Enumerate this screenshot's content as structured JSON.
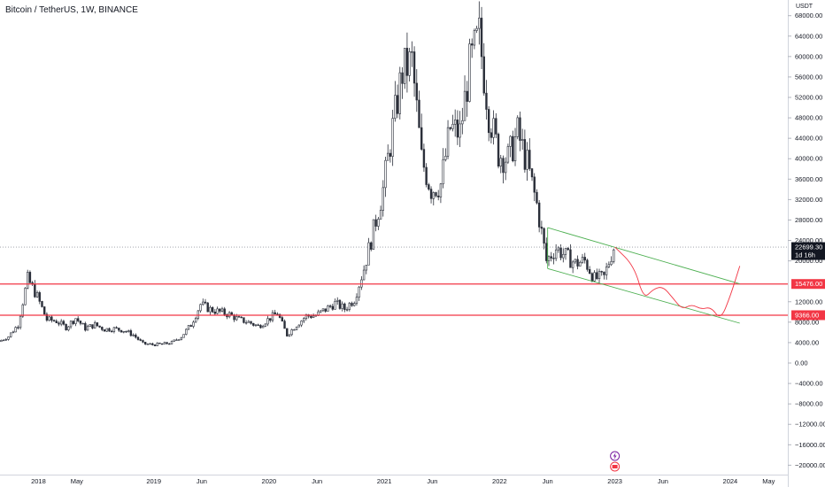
{
  "header": {
    "title": "Bitcoin / TetherUS, 1W, BINANCE"
  },
  "price_axis": {
    "unit": "USDT"
  },
  "colors": {
    "candle": "#2a2e39",
    "support_line": "#f23645",
    "channel": "#4caf50",
    "projection": "#f23645",
    "current_badge": "#131722",
    "axis_text": "#131722"
  },
  "badges": {
    "current_price": "22699.30",
    "countdown": "1d 16h",
    "support_high": "15476.00",
    "support_low": "9366.00"
  },
  "chart_data": {
    "type": "candlestick",
    "title": "Bitcoin / TetherUS, 1W, BINANCE",
    "y_unit": "USDT",
    "ylim": [
      -22000,
      70000
    ],
    "y_ticks": [
      68000,
      64000,
      60000,
      56000,
      52000,
      48000,
      44000,
      40000,
      36000,
      32000,
      28000,
      24000,
      20000,
      16000,
      12000,
      8000,
      4000,
      0,
      -4000,
      -8000,
      -12000,
      -16000,
      -20000
    ],
    "y_tick_labels": [
      "68000.00",
      "64000.00",
      "60000.00",
      "56000.00",
      "52000.00",
      "48000.00",
      "44000.00",
      "40000.00",
      "36000.00",
      "32000.00",
      "28000.00",
      "24000.00",
      "20000.00",
      "",
      "12000.00",
      "8000.00",
      "4000.00",
      "0.00",
      "−4000.00",
      "−8000.00",
      "−12000.00",
      "−16000.00",
      "−20000.00"
    ],
    "x_ticks": [
      {
        "label": "2018",
        "date": "2018-01"
      },
      {
        "label": "May",
        "date": "2018-05"
      },
      {
        "label": "2019",
        "date": "2019-01"
      },
      {
        "label": "Jun",
        "date": "2019-06"
      },
      {
        "label": "2020",
        "date": "2020-01"
      },
      {
        "label": "Jun",
        "date": "2020-06"
      },
      {
        "label": "2021",
        "date": "2021-01"
      },
      {
        "label": "Jun",
        "date": "2021-06"
      },
      {
        "label": "2022",
        "date": "2022-01"
      },
      {
        "label": "Jun",
        "date": "2022-06"
      },
      {
        "label": "2023",
        "date": "2023-01"
      },
      {
        "label": "Jun",
        "date": "2023-06"
      },
      {
        "label": "2024",
        "date": "2024-01"
      },
      {
        "label": "May",
        "date": "2024-05"
      }
    ],
    "xlim": [
      "2017-09",
      "2024-07"
    ],
    "series": [
      {
        "points": [
          [
            "2017-09",
            4200
          ],
          [
            "2017-10",
            5200
          ],
          [
            "2017-11",
            7500
          ],
          [
            "2017-12",
            16500
          ],
          [
            "2018-01",
            13000
          ],
          [
            "2018-02",
            8500
          ],
          [
            "2018-03",
            8200
          ],
          [
            "2018-04",
            7000
          ],
          [
            "2018-05",
            8800
          ],
          [
            "2018-06",
            6800
          ],
          [
            "2018-07",
            7500
          ],
          [
            "2018-08",
            6600
          ],
          [
            "2018-09",
            6700
          ],
          [
            "2018-10",
            6400
          ],
          [
            "2018-11",
            5500
          ],
          [
            "2018-12",
            3800
          ],
          [
            "2019-01",
            3600
          ],
          [
            "2019-02",
            3700
          ],
          [
            "2019-03",
            4000
          ],
          [
            "2019-04",
            5200
          ],
          [
            "2019-05",
            7500
          ],
          [
            "2019-06",
            11500
          ],
          [
            "2019-07",
            10500
          ],
          [
            "2019-08",
            10000
          ],
          [
            "2019-09",
            9500
          ],
          [
            "2019-10",
            8500
          ],
          [
            "2019-11",
            8000
          ],
          [
            "2019-12",
            7200
          ],
          [
            "2020-01",
            8500
          ],
          [
            "2020-02",
            9800
          ],
          [
            "2020-03",
            5500
          ],
          [
            "2020-04",
            7500
          ],
          [
            "2020-05",
            9200
          ],
          [
            "2020-06",
            9300
          ],
          [
            "2020-07",
            10500
          ],
          [
            "2020-08",
            11700
          ],
          [
            "2020-09",
            10600
          ],
          [
            "2020-10",
            12500
          ],
          [
            "2020-11",
            18500
          ],
          [
            "2020-12",
            26000
          ],
          [
            "2021-01",
            34000
          ],
          [
            "2021-02",
            46000
          ],
          [
            "2021-03",
            57000
          ],
          [
            "2021-04",
            59000
          ],
          [
            "2021-05",
            40000
          ],
          [
            "2021-06",
            34000
          ],
          [
            "2021-07",
            35000
          ],
          [
            "2021-08",
            46000
          ],
          [
            "2021-09",
            45000
          ],
          [
            "2021-10",
            58000
          ],
          [
            "2021-11",
            64000
          ],
          [
            "2021-12",
            49000
          ],
          [
            "2022-01",
            41000
          ],
          [
            "2022-02",
            40000
          ],
          [
            "2022-03",
            45000
          ],
          [
            "2022-04",
            39000
          ],
          [
            "2022-05",
            31000
          ],
          [
            "2022-06",
            20000
          ],
          [
            "2022-07",
            22500
          ],
          [
            "2022-08",
            21000
          ],
          [
            "2022-09",
            19500
          ],
          [
            "2022-10",
            20000
          ],
          [
            "2022-11",
            16500
          ],
          [
            "2022-12",
            16800
          ],
          [
            "2023-01",
            22700
          ]
        ]
      }
    ],
    "horizontal_lines": [
      15476,
      9366
    ],
    "current_price": 22699.3,
    "channel": {
      "upper": [
        [
          "2022-06",
          26500
        ],
        [
          "2024-02",
          15500
        ]
      ],
      "lower": [
        [
          "2022-06",
          18500
        ],
        [
          "2024-02",
          7800
        ]
      ]
    },
    "projection": [
      [
        "2023-01",
        22700
      ],
      [
        "2023-03",
        19000
      ],
      [
        "2023-04",
        12500
      ],
      [
        "2023-05",
        14500
      ],
      [
        "2023-06",
        15000
      ],
      [
        "2023-07",
        12800
      ],
      [
        "2023-08",
        10500
      ],
      [
        "2023-09",
        11500
      ],
      [
        "2023-10",
        10500
      ],
      [
        "2023-11",
        11000
      ],
      [
        "2023-12",
        8400
      ],
      [
        "2024-01",
        13000
      ],
      [
        "2024-02",
        19000
      ]
    ],
    "grid": false,
    "legend": "none"
  }
}
